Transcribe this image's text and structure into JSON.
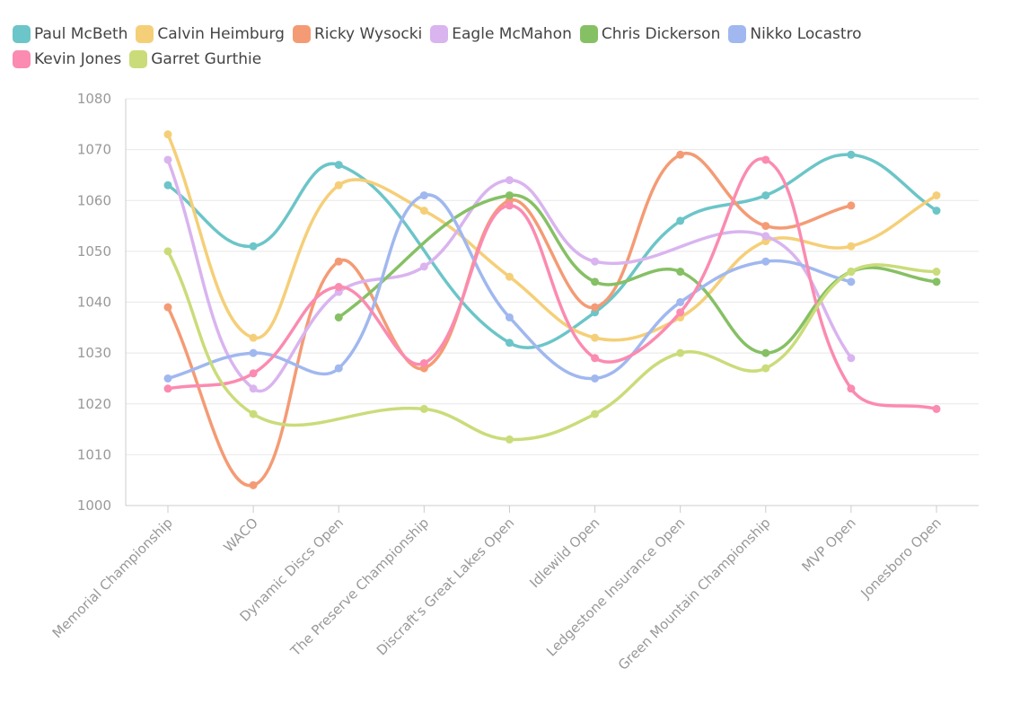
{
  "chart_data": {
    "type": "line",
    "title": "",
    "xlabel": "",
    "ylabel": "",
    "ylim": [
      1000,
      1080
    ],
    "yticks": [
      1000,
      1010,
      1020,
      1030,
      1040,
      1050,
      1060,
      1070,
      1080
    ],
    "grid": true,
    "legend_position": "top-left",
    "categories": [
      "Memorial Championship",
      "WACO",
      "Dynamic Discs Open",
      "The Preserve Championship",
      "Discraft's Great Lakes Open",
      "Idlewild Open",
      "Ledgestone Insurance Open",
      "Green Mountain Championship",
      "MVP Open",
      "Jonesboro Open"
    ],
    "series": [
      {
        "name": "Paul McBeth",
        "color": "#6cc5c8",
        "values": [
          1063,
          1051,
          1067,
          null,
          1032,
          1038,
          1056,
          1061,
          1069,
          1058
        ]
      },
      {
        "name": "Calvin Heimburg",
        "color": "#f5cf78",
        "values": [
          1073,
          1033,
          1063,
          1058,
          1045,
          1033,
          1037,
          1052,
          1051,
          1061
        ]
      },
      {
        "name": "Ricky Wysocki",
        "color": "#f49b75",
        "values": [
          1039,
          1004,
          1048,
          1027,
          1060,
          1039,
          1069,
          1055,
          1059,
          null
        ]
      },
      {
        "name": "Eagle McMahon",
        "color": "#d9b4ef",
        "values": [
          1068,
          1023,
          1042,
          1047,
          1064,
          1048,
          null,
          1053,
          1029,
          null
        ]
      },
      {
        "name": "Chris Dickerson",
        "color": "#86c064",
        "values": [
          null,
          null,
          1037,
          null,
          1061,
          1044,
          1046,
          1030,
          1046,
          1044
        ]
      },
      {
        "name": "Nikko Locastro",
        "color": "#a0b8ef",
        "values": [
          1025,
          1030,
          1027,
          1061,
          1037,
          1025,
          1040,
          1048,
          1044,
          null
        ]
      },
      {
        "name": "Kevin Jones",
        "color": "#fb8bb0",
        "values": [
          1023,
          1026,
          1043,
          1028,
          1059,
          1029,
          1038,
          1068,
          1023,
          1019
        ]
      },
      {
        "name": "Garret Gurthie",
        "color": "#cadc7a",
        "values": [
          1050,
          1018,
          null,
          1019,
          1013,
          1018,
          1030,
          1027,
          1046,
          1046
        ]
      }
    ]
  }
}
